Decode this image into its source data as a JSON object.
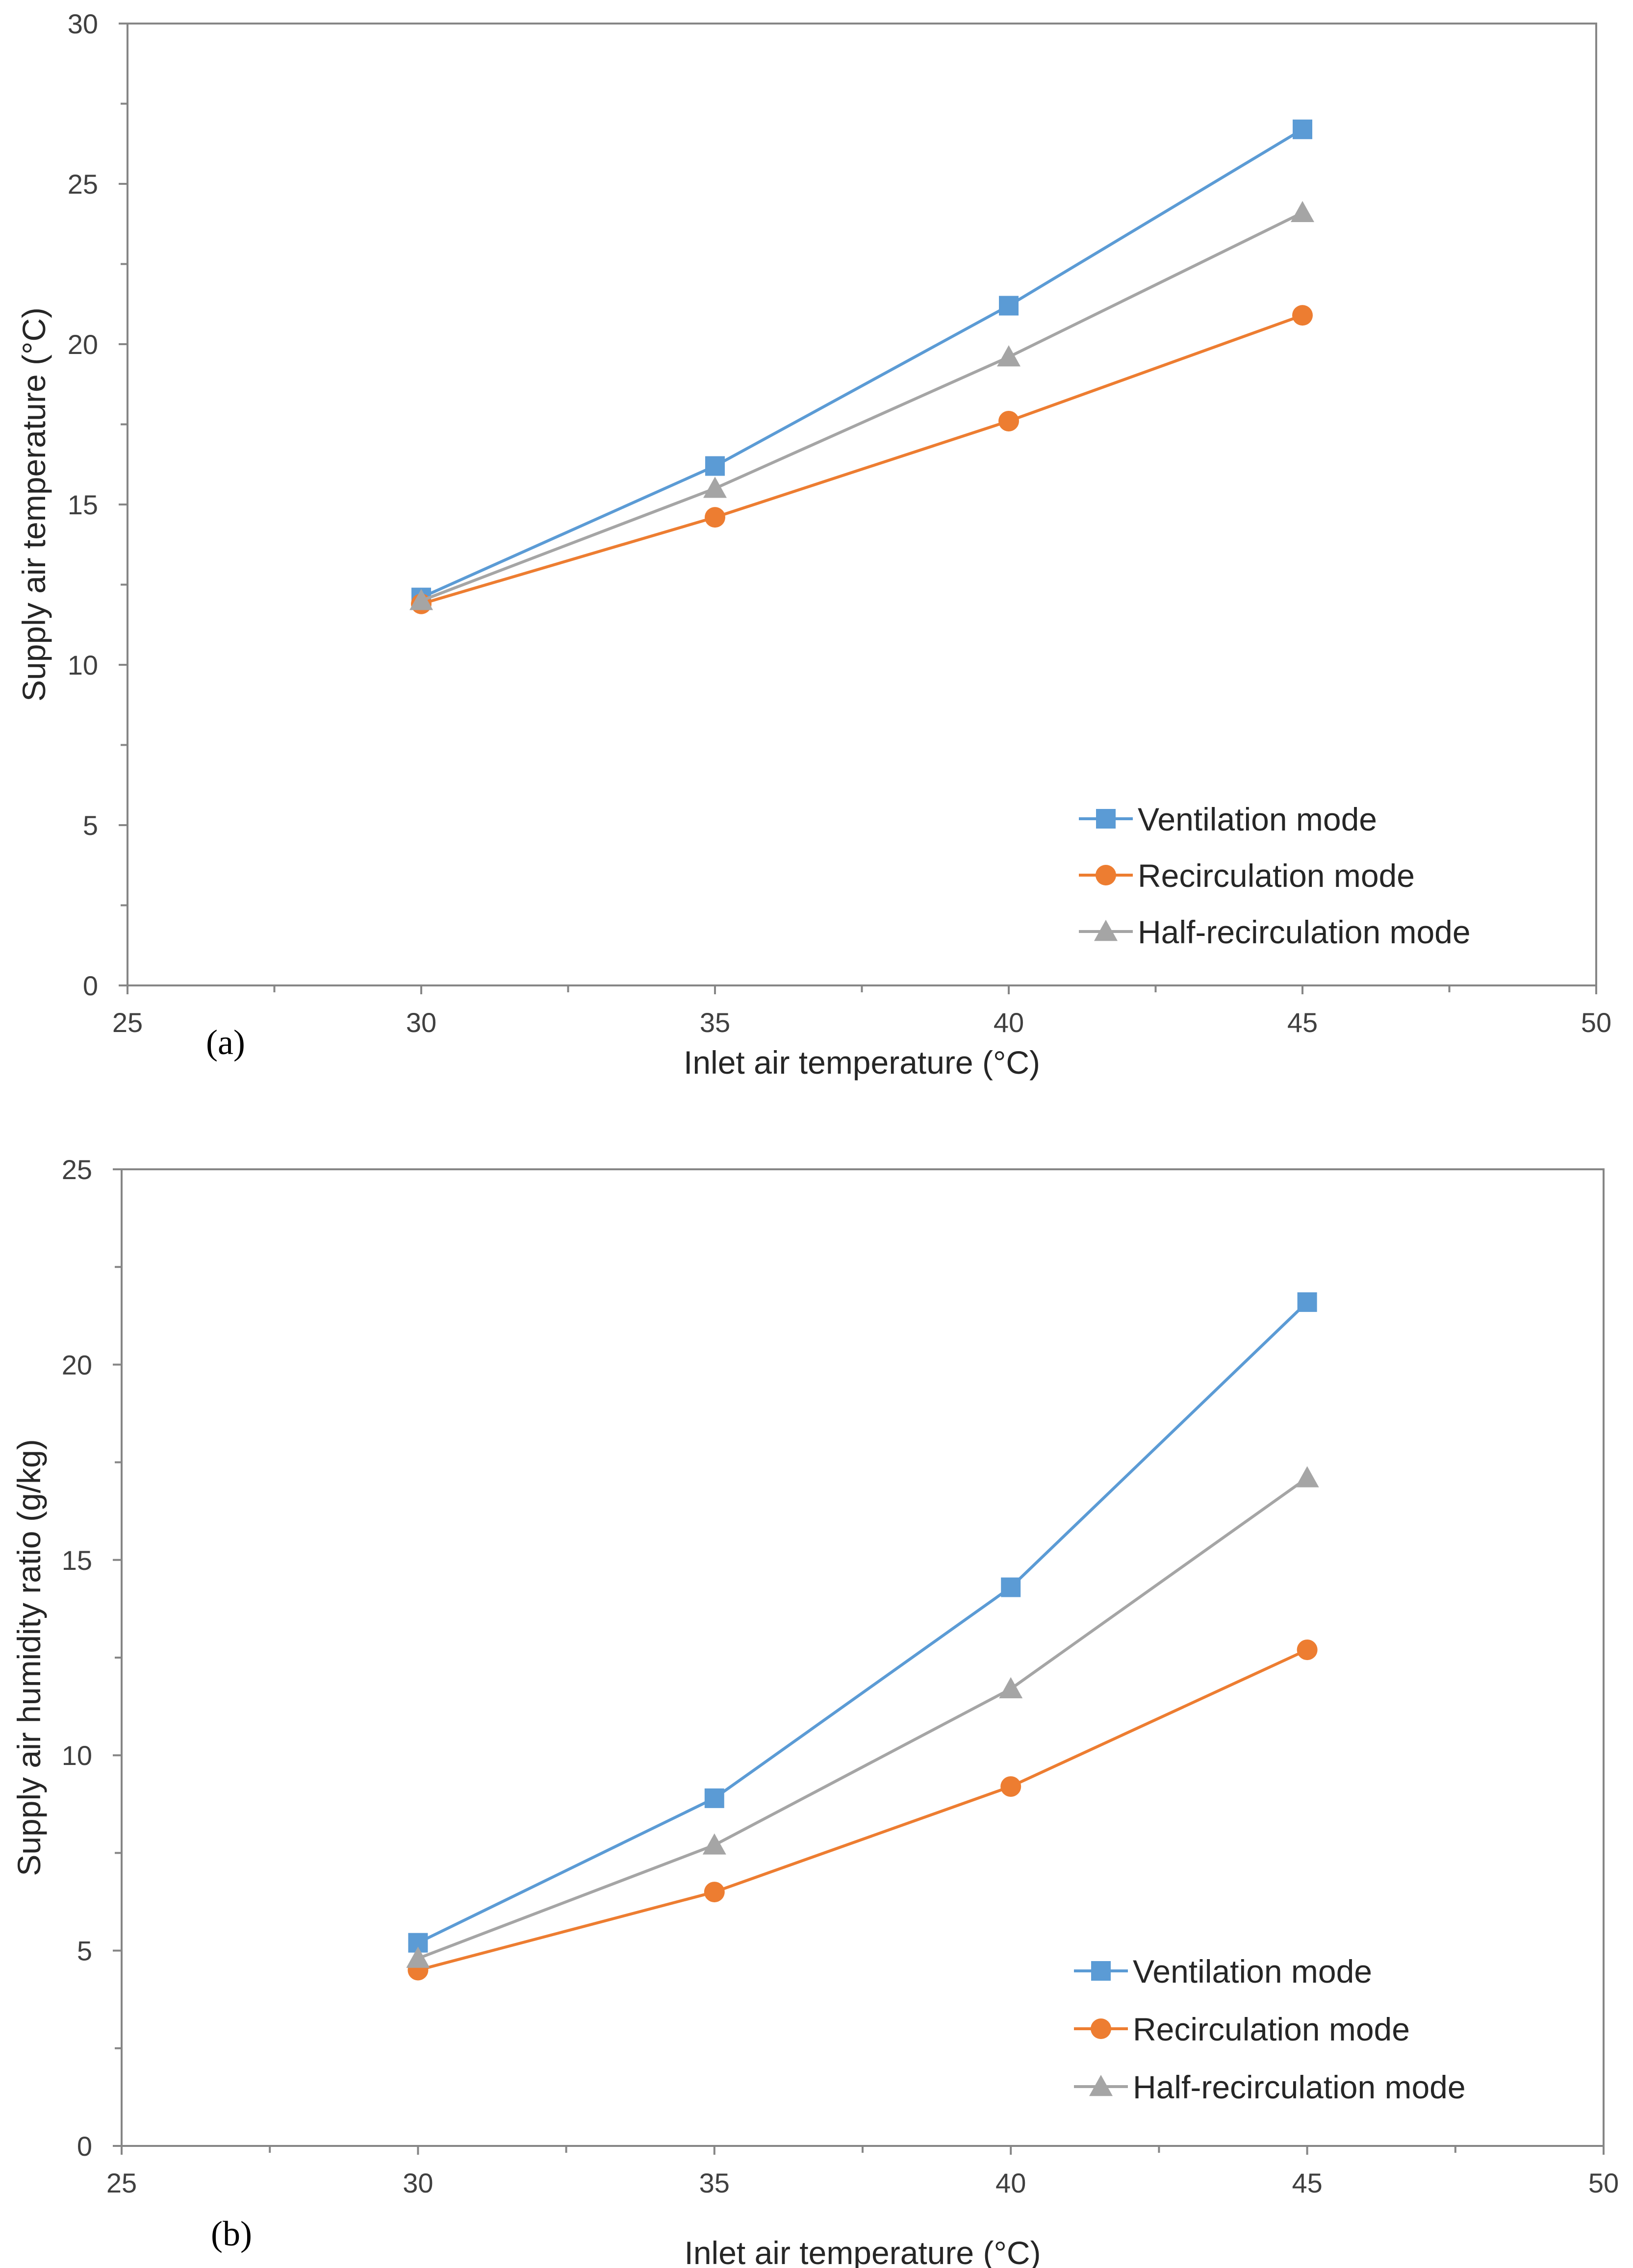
{
  "colors": {
    "ventilation": "#5B9BD5",
    "recirculation": "#ED7D31",
    "half_recirculation": "#A5A5A5",
    "axis": "#868686",
    "text": "#404040"
  },
  "chart_data": [
    {
      "type": "line",
      "panel_label": "(a)",
      "xlabel": "Inlet air temperature (°C)",
      "ylabel": "Supply air temperature (°C)",
      "xlim": [
        25,
        50
      ],
      "ylim": [
        0,
        30
      ],
      "x_ticks": [
        25,
        30,
        35,
        40,
        45,
        50
      ],
      "y_ticks": [
        0,
        5,
        10,
        15,
        20,
        25,
        30
      ],
      "x_minor_step": 2.5,
      "y_minor_step": 2.5,
      "x": [
        30,
        35,
        40,
        45
      ],
      "legend_position": "bottom-right",
      "series": [
        {
          "name": "Ventilation mode",
          "marker": "square",
          "color": "#5B9BD5",
          "values": [
            12.1,
            16.2,
            21.2,
            26.7
          ]
        },
        {
          "name": "Recirculation mode",
          "marker": "circle",
          "color": "#ED7D31",
          "values": [
            11.9,
            14.6,
            17.6,
            20.9
          ]
        },
        {
          "name": "Half-recirculation mode",
          "marker": "triangle",
          "color": "#A5A5A5",
          "values": [
            12.0,
            15.5,
            19.6,
            24.1
          ]
        }
      ]
    },
    {
      "type": "line",
      "panel_label": "(b)",
      "xlabel": "Inlet air temperature (°C)",
      "ylabel": "Supply air humidity ratio (g/kg)",
      "xlim": [
        25,
        50
      ],
      "ylim": [
        0,
        25
      ],
      "x_ticks": [
        25,
        30,
        35,
        40,
        45,
        50
      ],
      "y_ticks": [
        0,
        5,
        10,
        15,
        20,
        25
      ],
      "x_minor_step": 2.5,
      "y_minor_step": 2.5,
      "x": [
        30,
        35,
        40,
        45
      ],
      "legend_position": "bottom-right",
      "series": [
        {
          "name": "Ventilation mode",
          "marker": "square",
          "color": "#5B9BD5",
          "values": [
            5.2,
            8.9,
            14.3,
            21.6
          ]
        },
        {
          "name": "Recirculation mode",
          "marker": "circle",
          "color": "#ED7D31",
          "values": [
            4.5,
            6.5,
            9.2,
            12.7
          ]
        },
        {
          "name": "Half-recirculation mode",
          "marker": "triangle",
          "color": "#A5A5A5",
          "values": [
            4.8,
            7.7,
            11.7,
            17.1
          ]
        }
      ]
    }
  ]
}
